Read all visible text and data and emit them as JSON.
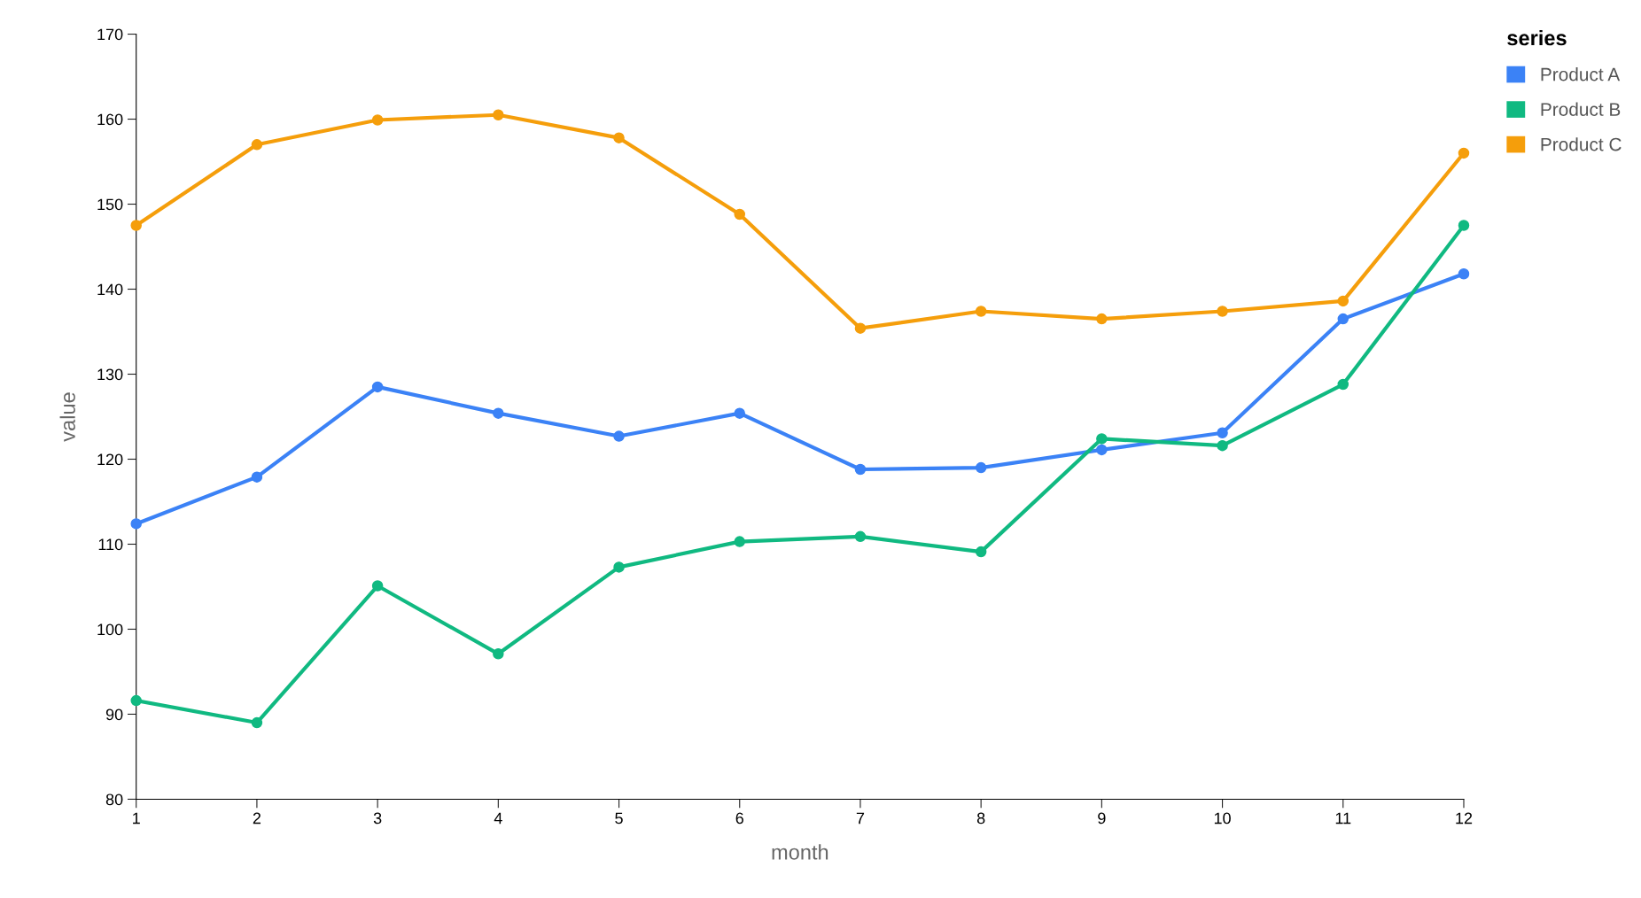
{
  "chart_data": {
    "type": "line",
    "xlabel": "month",
    "ylabel": "value",
    "legend_title": "series",
    "legend": "top right",
    "marker": "circle",
    "line_style": "solid",
    "grid": false,
    "x": [
      1,
      2,
      3,
      4,
      5,
      6,
      7,
      8,
      9,
      10,
      11,
      12
    ],
    "xlim": [
      1,
      12
    ],
    "xticks": [
      1,
      2,
      3,
      4,
      5,
      6,
      7,
      8,
      9,
      10,
      11,
      12
    ],
    "ylim": [
      80,
      170
    ],
    "yticks": [
      80,
      90,
      100,
      110,
      120,
      130,
      140,
      150,
      160,
      170
    ],
    "series": [
      {
        "name": "Product A",
        "color": "#3b82f6",
        "values": [
          112.4,
          117.9,
          128.5,
          125.4,
          122.7,
          125.4,
          118.8,
          119.0,
          121.1,
          123.1,
          136.5,
          141.8
        ]
      },
      {
        "name": "Product B",
        "color": "#10b981",
        "values": [
          91.6,
          89.0,
          105.1,
          97.1,
          107.3,
          110.3,
          110.9,
          109.1,
          122.4,
          121.6,
          128.8,
          147.5
        ]
      },
      {
        "name": "Product C",
        "color": "#f59e0b",
        "values": [
          147.5,
          157.0,
          159.9,
          160.5,
          157.8,
          148.8,
          135.4,
          137.4,
          136.5,
          137.4,
          138.6,
          156.0
        ]
      }
    ]
  }
}
